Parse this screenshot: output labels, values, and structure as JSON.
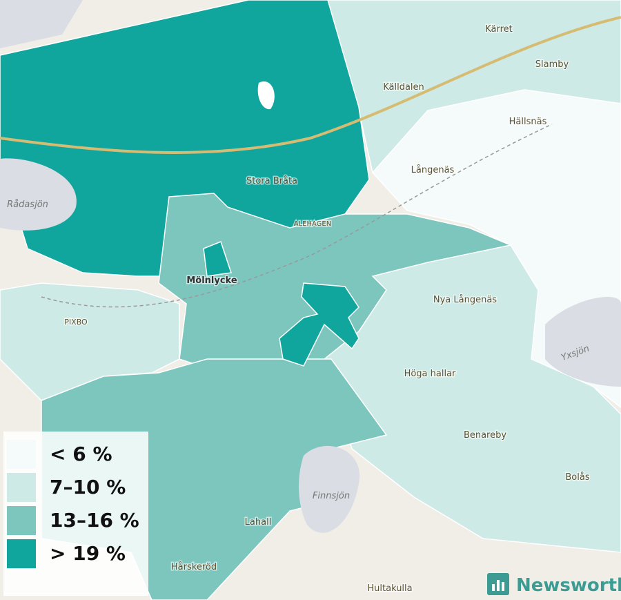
{
  "legend": {
    "items": [
      {
        "label": "< 6 %",
        "color": "#f5fbfb"
      },
      {
        "label": "7–10 %",
        "color": "#cdeae7"
      },
      {
        "label": "13–16 %",
        "color": "#7cc6be"
      },
      {
        "label": "> 19 %",
        "color": "#10a69e"
      }
    ]
  },
  "places": [
    "Kärret",
    "Slamby",
    "Källdalen",
    "Hällsnäs",
    "Långenäs",
    "Stora Bråta",
    "ALEHAGEN",
    "Mölnlycke",
    "Nya Långenäs",
    "PIXBO",
    "Höga hallar",
    "Benareby",
    "Bolås",
    "Lahall",
    "Hårskeröd",
    "Hultakulla"
  ],
  "waters": [
    "Rådasjön",
    "Finnsjön",
    "Yxsjön"
  ],
  "logo": {
    "text": "Newsworthy"
  }
}
